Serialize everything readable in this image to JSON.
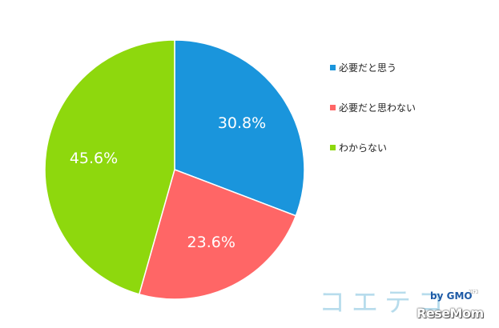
{
  "chart_data": {
    "type": "pie",
    "categories": [
      "必要だと思う",
      "必要だと思わない",
      "わからない"
    ],
    "values": [
      30.8,
      23.6,
      45.6
    ],
    "data_labels": [
      "30.8%",
      "23.6%",
      "45.6%"
    ],
    "colors": [
      "#1a95dc",
      "#ff6666",
      "#8ed80d"
    ],
    "start_angle": "12 o'clock, clockwise",
    "legend": "right"
  },
  "watermarks": {
    "brand": "コエテコ",
    "gmo": "by GMO",
    "gmo_sub": "ｺｴﾃｺ",
    "publisher": "ReseMom"
  }
}
